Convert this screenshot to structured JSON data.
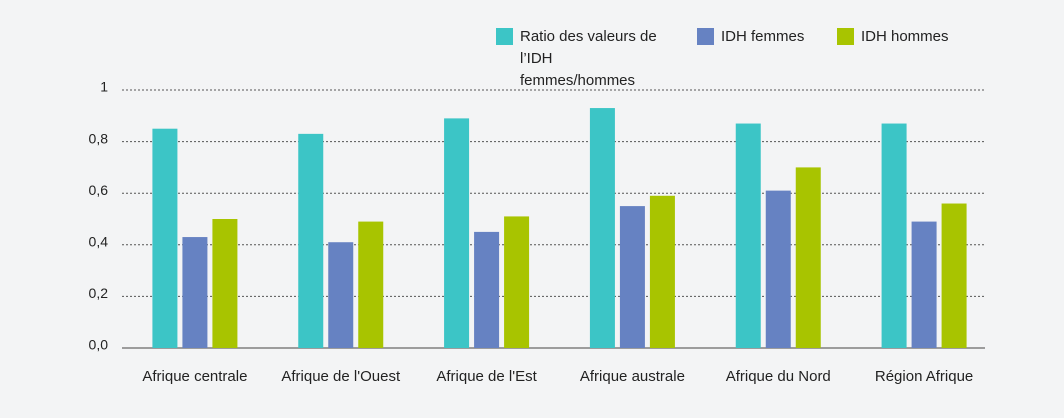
{
  "chart_data": {
    "type": "bar",
    "categories": [
      "Afrique centrale",
      "Afrique de l'Ouest",
      "Afrique de l'Est",
      "Afrique australe",
      "Afrique du Nord",
      "Région Afrique"
    ],
    "series": [
      {
        "name": "Ratio des valeurs de l’IDH femmes/hommes",
        "color": "#3cc5c6",
        "values": [
          0.85,
          0.83,
          0.89,
          0.93,
          0.87,
          0.87
        ]
      },
      {
        "name": "IDH femmes",
        "color": "#6682c2",
        "values": [
          0.43,
          0.41,
          0.45,
          0.55,
          0.61,
          0.49
        ]
      },
      {
        "name": "IDH hommes",
        "color": "#a8c400",
        "values": [
          0.5,
          0.49,
          0.51,
          0.59,
          0.7,
          0.56
        ]
      }
    ],
    "ylim": [
      0,
      1
    ],
    "yticks": [
      {
        "value": 0,
        "label": "0,0"
      },
      {
        "value": 0.2,
        "label": "0,2"
      },
      {
        "value": 0.4,
        "label": "0,4"
      },
      {
        "value": 0.6,
        "label": "0,6"
      },
      {
        "value": 0.8,
        "label": "0,8"
      },
      1
    ],
    "grid": true
  }
}
